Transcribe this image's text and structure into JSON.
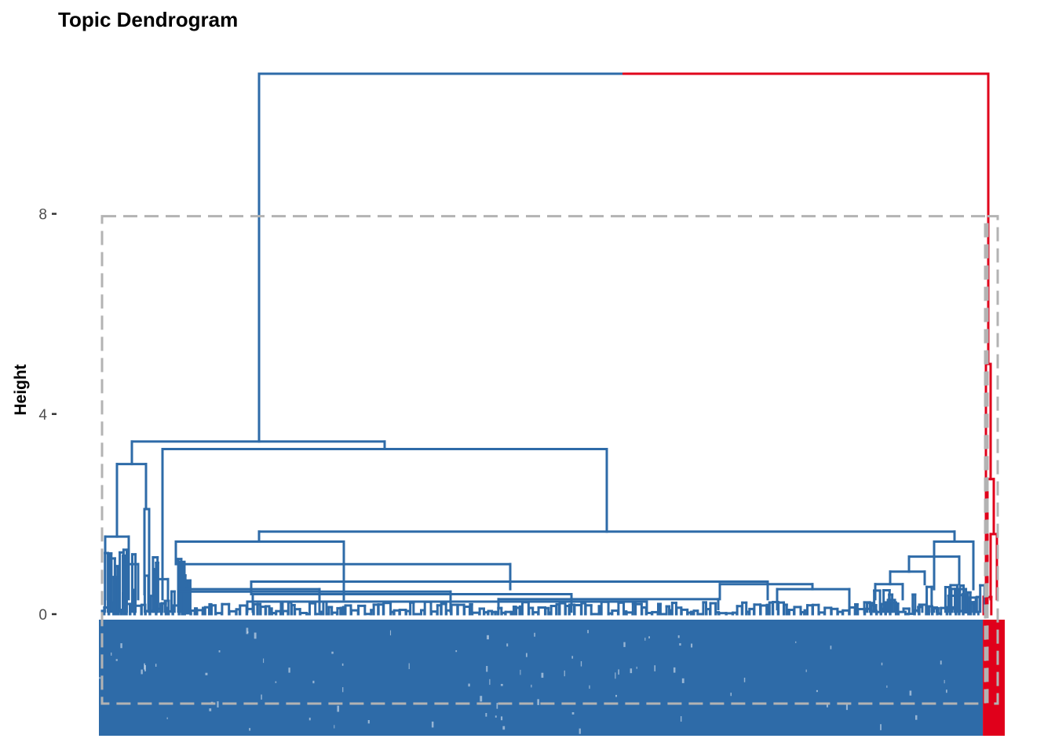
{
  "chart_data": {
    "type": "dendrogram",
    "title": "Topic Dendrogram",
    "xlabel": "",
    "ylabel": "Height",
    "ylim": [
      -2.4,
      11
    ],
    "y_ticks": [
      0,
      4,
      8
    ],
    "grid": false,
    "legend": "none",
    "colors": {
      "cluster_1": "#2E6BA8",
      "cluster_2": "#E0001B",
      "cut_box": "#B3B3B3"
    },
    "cut_height": 8,
    "clusters": [
      {
        "color": "cluster_1",
        "leaf_share": 0.986
      },
      {
        "color": "cluster_2",
        "leaf_share": 0.014
      }
    ],
    "root_height": 10.8,
    "major_merges": [
      {
        "height": 10.8,
        "children": [
          "blue cluster",
          "red cluster"
        ]
      },
      {
        "height": 3.45,
        "cluster": "cluster_1"
      },
      {
        "height": 3.3,
        "cluster": "cluster_1"
      },
      {
        "height": 3.0,
        "cluster": "cluster_1"
      },
      {
        "height": 1.65,
        "cluster": "cluster_1"
      },
      {
        "height": 1.45,
        "cluster": "cluster_1"
      },
      {
        "height": 1.0,
        "cluster": "cluster_1"
      },
      {
        "height": 5.0,
        "cluster": "cluster_2"
      },
      {
        "height": 2.7,
        "cluster": "cluster_2"
      },
      {
        "height": 1.6,
        "cluster": "cluster_2"
      }
    ]
  }
}
